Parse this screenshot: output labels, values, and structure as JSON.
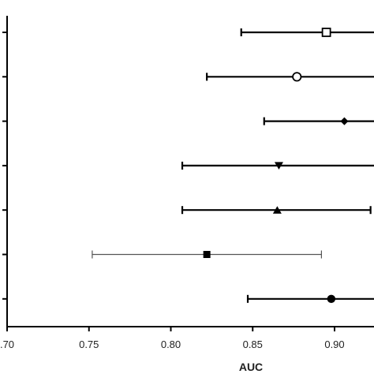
{
  "chart_data": {
    "type": "scatter",
    "subtype": "forest-plot",
    "title": "",
    "xlabel": "AUC",
    "ylabel": "",
    "xlim": [
      0.7,
      0.925
    ],
    "x_ticks": [
      0.7,
      0.75,
      0.8,
      0.85,
      0.9
    ],
    "x_tick_labels": [
      ".70",
      "0.75",
      "0.80",
      "0.85",
      "0.90"
    ],
    "grid": false,
    "legend": "none",
    "rows": [
      {
        "marker": "open-square",
        "auc": 0.895,
        "ci_low": 0.843,
        "ci_high": 0.93,
        "line": "bold"
      },
      {
        "marker": "open-circle",
        "auc": 0.877,
        "ci_low": 0.822,
        "ci_high": 0.93,
        "line": "bold"
      },
      {
        "marker": "diamond",
        "auc": 0.906,
        "ci_low": 0.857,
        "ci_high": 0.93,
        "line": "bold"
      },
      {
        "marker": "triangle-down",
        "auc": 0.866,
        "ci_low": 0.807,
        "ci_high": 0.93,
        "line": "bold"
      },
      {
        "marker": "triangle-up",
        "auc": 0.865,
        "ci_low": 0.807,
        "ci_high": 0.922,
        "line": "bold"
      },
      {
        "marker": "square",
        "auc": 0.822,
        "ci_low": 0.752,
        "ci_high": 0.892,
        "line": "thin"
      },
      {
        "marker": "circle",
        "auc": 0.898,
        "ci_low": 0.847,
        "ci_high": 0.93,
        "line": "bold"
      }
    ],
    "colors": {
      "ink": "#000000",
      "thin_line": "#555555"
    }
  }
}
